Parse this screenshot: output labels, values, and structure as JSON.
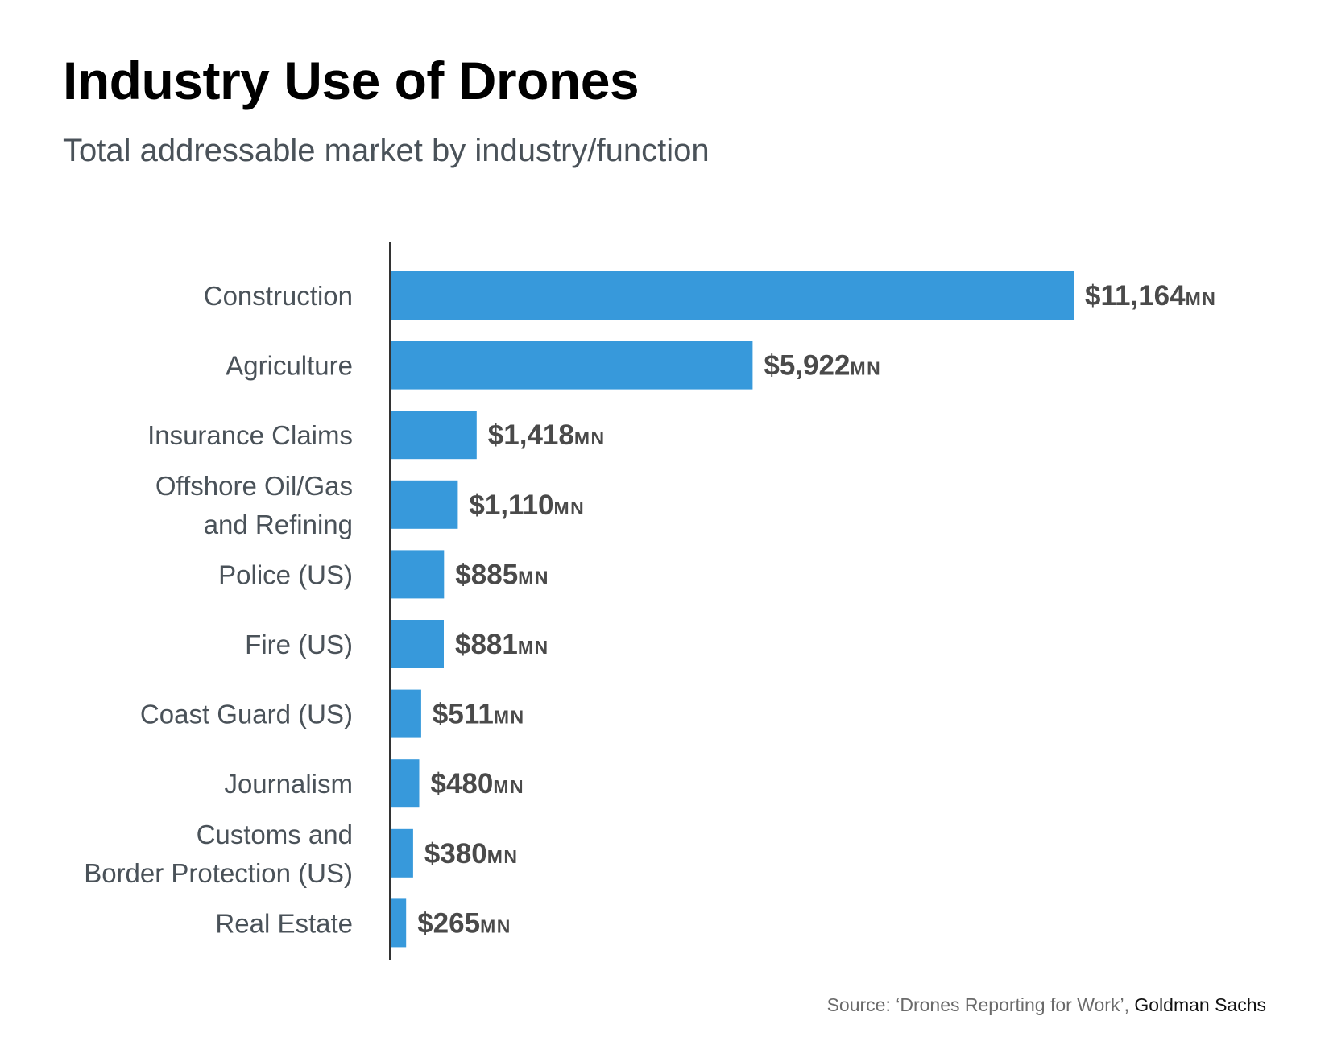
{
  "header": {
    "title": "Industry Use of Drones",
    "subtitle": "Total addressable market by industry/function"
  },
  "footer": {
    "source_prefix": "Source: ‘Drones Reporting for Work’, ",
    "source_publisher": "Goldman Sachs"
  },
  "colors": {
    "bar": "#3799db",
    "label_text": "#4a5259",
    "value_text": "#4a4a4a",
    "axis": "#333333"
  },
  "chart_data": {
    "type": "bar",
    "orientation": "horizontal",
    "title": "Industry Use of Drones",
    "subtitle": "Total addressable market by industry/function",
    "categories": [
      [
        "Construction"
      ],
      [
        "Agriculture"
      ],
      [
        "Insurance Claims"
      ],
      [
        "Offshore Oil/Gas",
        "and Refining"
      ],
      [
        "Police (US)"
      ],
      [
        "Fire (US)"
      ],
      [
        "Coast Guard (US)"
      ],
      [
        "Journalism"
      ],
      [
        "Customs and",
        "Border Protection (US)"
      ],
      [
        "Real Estate"
      ]
    ],
    "values": [
      11164,
      5922,
      1418,
      1110,
      885,
      881,
      511,
      480,
      380,
      265
    ],
    "value_labels": [
      "$11,164",
      "$5,922",
      "$1,418",
      "$1,110",
      "$885",
      "$881",
      "$511",
      "$480",
      "$380",
      "$265"
    ],
    "unit_suffix": "MN",
    "xlim": [
      0,
      11164
    ],
    "grid": false,
    "legend": "none"
  }
}
